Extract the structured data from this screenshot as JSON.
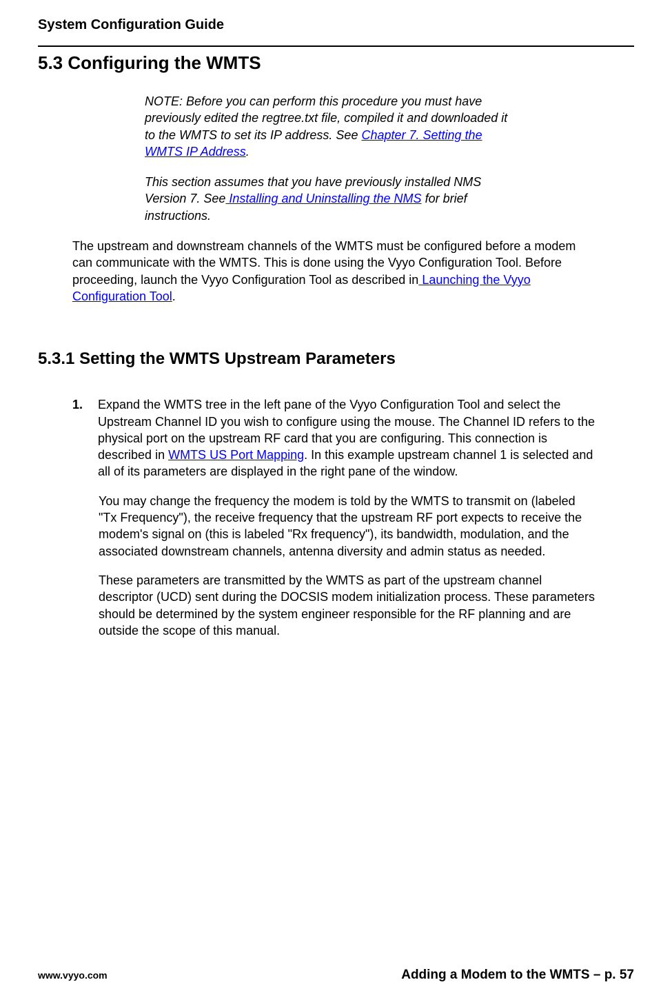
{
  "header": {
    "title": "System Configuration Guide"
  },
  "section": {
    "number": "5.3",
    "title": "Configuring the WMTS"
  },
  "note": {
    "paragraph1_prefix": "NOTE:  Before you can perform this procedure you must have previously edited the regtree.txt file, compiled it and downloaded it to the WMTS to set its IP address.  See ",
    "paragraph1_link": "Chapter 7. Setting the WMTS IP Address",
    "paragraph1_suffix": ".",
    "paragraph2_prefix": "This section assumes that you have previously installed NMS Version 7.  See",
    "paragraph2_link": " Installing and Uninstalling the NMS",
    "paragraph2_suffix": " for brief instructions."
  },
  "body": {
    "paragraph1_prefix": "The upstream and downstream channels of the WMTS must be configured before a modem can communicate with the WMTS.   This is done using the Vyyo Configuration Tool.  Before proceeding, launch the Vyyo Configuration Tool as described in",
    "paragraph1_link": " Launching the Vyyo Configuration Tool",
    "paragraph1_suffix": "."
  },
  "subsection": {
    "number": "5.3.1",
    "title": "Setting the WMTS Upstream Parameters"
  },
  "item1": {
    "number": "1.",
    "p1_prefix": "Expand the WMTS tree in the left pane of the Vyyo Configuration Tool and select the Upstream Channel ID you wish to configure using the mouse.  The Channel ID refers to the physical port on the upstream RF card that you are configuring.   This connection is described in ",
    "p1_link": "WMTS US Port Mapping",
    "p1_suffix": ". In this example upstream channel 1 is selected and all of its parameters are displayed in the right pane of the window.",
    "p2": "You may change the frequency the modem is told by the WMTS to transmit on (labeled \"Tx Frequency\"), the receive frequency that the upstream RF port  expects to receive the modem's signal on (this is labeled \"Rx frequency\"), its bandwidth, modulation, and the associated downstream channels, antenna diversity and admin status as needed.",
    "p3": "These parameters are transmitted by the WMTS as part of the upstream channel descriptor (UCD) sent during the DOCSIS modem initialization process.  These parameters should be determined by the system engineer responsible for the RF planning and are outside the scope of this manual."
  },
  "footer": {
    "left": "www.vyyo.com",
    "right": "Adding a Modem to the WMTS – p. 57"
  }
}
